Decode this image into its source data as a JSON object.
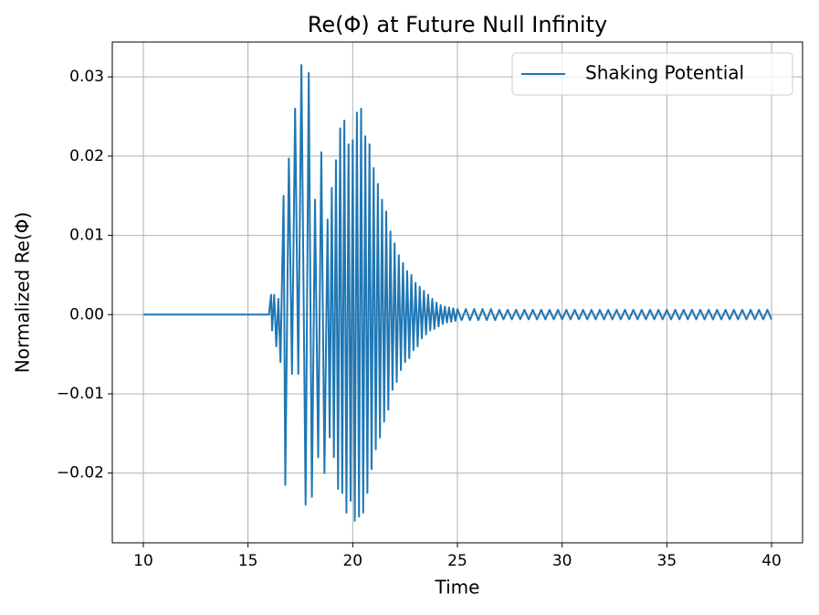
{
  "chart_data": {
    "type": "line",
    "title": "Re(Φ) at Future Null Infinity",
    "x_label": "Time",
    "y_label": "Normalized Re(Φ)",
    "xlim": [
      8.52,
      41.48
    ],
    "ylim": [
      -0.0288,
      0.0344
    ],
    "xticks": [
      10,
      15,
      20,
      25,
      30,
      35,
      40
    ],
    "yticks": [
      {
        "value": -0.02,
        "label": "−0.02"
      },
      {
        "value": -0.01,
        "label": "−0.01"
      },
      {
        "value": 0,
        "label": "0.00"
      },
      {
        "value": 0.01,
        "label": "0.01"
      },
      {
        "value": 0.02,
        "label": "0.02"
      },
      {
        "value": 0.03,
        "label": "0.03"
      }
    ],
    "grid": true,
    "legend": "upper-right",
    "x": [
      10,
      16,
      16.1,
      16.15,
      16.25,
      16.35,
      16.45,
      16.55,
      16.7,
      16.78,
      16.95,
      17.1,
      17.25,
      17.4,
      17.55,
      17.75,
      17.9,
      18.05,
      18.2,
      18.35,
      18.5,
      18.65,
      18.8,
      18.9,
      19.0,
      19.1,
      19.2,
      19.3,
      19.4,
      19.5,
      19.6,
      19.7,
      19.8,
      19.9,
      20.0,
      20.1,
      20.2,
      20.3,
      20.4,
      20.5,
      20.6,
      20.7,
      20.8,
      20.9,
      21.0,
      21.1,
      21.2,
      21.3,
      21.4,
      21.5,
      21.6,
      21.7,
      21.8,
      21.9,
      22.0,
      22.1,
      22.2,
      22.3,
      22.4,
      22.5,
      22.6,
      22.7,
      22.8,
      22.9,
      23.0,
      23.1,
      23.2,
      23.3,
      23.4,
      23.5,
      23.6,
      23.7,
      23.8,
      23.9,
      24.0,
      24.1,
      24.2,
      24.3,
      24.4,
      24.5,
      24.6,
      24.7,
      24.8,
      24.9,
      25.0,
      25.2,
      25.4,
      25.6,
      25.8,
      26.0,
      26.2,
      26.4,
      26.6,
      26.8,
      27.0,
      27.2,
      27.4,
      27.6,
      27.8,
      28.0,
      28.2,
      28.4,
      28.6,
      28.8,
      29.0,
      29.2,
      29.4,
      29.6,
      29.8,
      30.0,
      30.2,
      30.4,
      30.6,
      30.8,
      31.0,
      31.2,
      31.4,
      31.6,
      31.8,
      32.0,
      32.2,
      32.4,
      32.6,
      32.8,
      33.0,
      33.2,
      33.4,
      33.6,
      33.8,
      34.0,
      34.2,
      34.4,
      34.6,
      34.8,
      35.0,
      35.2,
      35.4,
      35.6,
      35.8,
      36.0,
      36.2,
      36.4,
      36.6,
      36.8,
      37.0,
      37.2,
      37.4,
      37.6,
      37.8,
      38.0,
      38.2,
      38.4,
      38.6,
      38.8,
      39.0,
      39.2,
      39.4,
      39.6,
      39.8,
      40.0
    ],
    "series": [
      {
        "name": "Shaking Potential",
        "color": "#1f77b4",
        "values": [
          0,
          0,
          0.0025,
          -0.002,
          0.0025,
          -0.004,
          0.002,
          -0.006,
          0.015,
          -0.0215,
          0.0197,
          -0.0075,
          0.026,
          -0.0075,
          0.0315,
          -0.024,
          0.0305,
          -0.023,
          0.0145,
          -0.018,
          0.0205,
          -0.02,
          0.012,
          -0.0155,
          0.016,
          -0.018,
          0.0195,
          -0.022,
          0.0235,
          -0.0225,
          0.0245,
          -0.025,
          0.0215,
          -0.0235,
          0.022,
          -0.026,
          0.0255,
          -0.0255,
          0.026,
          -0.025,
          0.0225,
          -0.0225,
          0.0215,
          -0.0195,
          0.0185,
          -0.017,
          0.0165,
          -0.0155,
          0.0145,
          -0.0135,
          0.013,
          -0.012,
          0.0105,
          -0.0095,
          0.009,
          -0.0085,
          0.0075,
          -0.007,
          0.0065,
          -0.006,
          0.0055,
          -0.0055,
          0.005,
          -0.0045,
          0.004,
          -0.004,
          0.0035,
          -0.003,
          0.003,
          -0.0025,
          0.0025,
          -0.002,
          0.002,
          -0.0018,
          0.0015,
          -0.0015,
          0.0012,
          -0.0012,
          0.001,
          -0.001,
          0.0009,
          -0.0009,
          0.0008,
          -0.0008,
          0.0007,
          -0.0007,
          0.0007,
          -0.0007,
          0.0007,
          -0.0007,
          0.0007,
          -0.0007,
          0.0007,
          -0.0007,
          0.0006,
          -0.0006,
          0.0006,
          -0.0006,
          0.0006,
          -0.0006,
          0.0006,
          -0.0006,
          0.0006,
          -0.0006,
          0.0006,
          -0.0006,
          0.0006,
          -0.0006,
          0.0006,
          -0.0006,
          0.0006,
          -0.0006,
          0.0006,
          -0.0006,
          0.0006,
          -0.0006,
          0.0006,
          -0.0006,
          0.0006,
          -0.0006,
          0.0006,
          -0.0006,
          0.0006,
          -0.0006,
          0.0006,
          -0.0006,
          0.0006,
          -0.0006,
          0.0006,
          -0.0006,
          0.0006,
          -0.0006,
          0.0006,
          -0.0006,
          0.0006,
          -0.0006,
          0.0006,
          -0.0006,
          0.0006,
          -0.0006,
          0.0006,
          -0.0006,
          0.0006,
          -0.0006,
          0.0006,
          -0.0006,
          0.0006,
          -0.0006,
          0.0006,
          -0.0006,
          0.0006,
          -0.0006,
          0.0006,
          -0.0006,
          0.0006,
          -0.0006,
          0.0006,
          -0.0006,
          0.0006,
          -0.0006
        ]
      }
    ]
  }
}
